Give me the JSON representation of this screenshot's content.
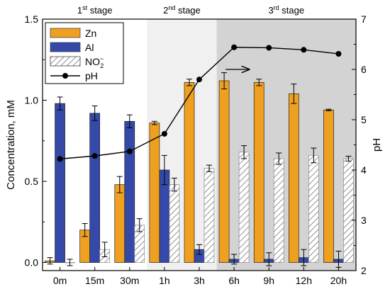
{
  "chart_data": {
    "type": "bar",
    "categories": [
      "0m",
      "15m",
      "30m",
      "1h",
      "3h",
      "6h",
      "9h",
      "12h",
      "20h"
    ],
    "stages": [
      {
        "label": "1st stage",
        "base": "1",
        "sup": "st",
        "rest": " stage"
      },
      {
        "label": "2nd stage",
        "base": "2",
        "sup": "nd",
        "rest": " stage"
      },
      {
        "label": "3rd stage",
        "base": "3",
        "sup": "rd",
        "rest": " stage"
      }
    ],
    "ylabel": "Concentration, mM",
    "y2label": "pH",
    "ylim": [
      -0.05,
      1.5
    ],
    "y2lim": [
      2.0,
      7.0
    ],
    "yticks": [
      "0.0",
      "0.5",
      "1.0",
      "1.5"
    ],
    "y2ticks": [
      "2",
      "3",
      "4",
      "5",
      "6",
      "7"
    ],
    "series": [
      {
        "name": "Zn",
        "kind": "bar",
        "color": "#f0a020",
        "values": [
          0.01,
          0.2,
          0.48,
          0.86,
          1.11,
          1.12,
          1.11,
          1.04,
          0.94
        ],
        "errors": [
          0.02,
          0.04,
          0.05,
          0.01,
          0.02,
          0.05,
          0.02,
          0.06,
          0.005
        ]
      },
      {
        "name": "Al",
        "kind": "bar",
        "color": "#3549a8",
        "values": [
          0.98,
          0.92,
          0.87,
          0.57,
          0.08,
          0.02,
          0.02,
          0.03,
          0.02
        ],
        "errors": [
          0.04,
          0.045,
          0.04,
          0.09,
          0.03,
          0.03,
          0.04,
          0.05,
          0.05
        ]
      },
      {
        "name": "NO2-",
        "label_main": "NO",
        "label_sub": "2",
        "label_sup": "−",
        "kind": "bar",
        "color": "#ffffff",
        "pattern": "hatch",
        "values": [
          0.0,
          0.08,
          0.23,
          0.48,
          0.58,
          0.68,
          0.64,
          0.66,
          0.64
        ],
        "errors": [
          0.02,
          0.045,
          0.04,
          0.04,
          0.02,
          0.04,
          0.035,
          0.045,
          0.015
        ]
      },
      {
        "name": "pH",
        "kind": "line",
        "axis": "right",
        "color": "#000000",
        "values": [
          4.22,
          4.28,
          4.37,
          4.72,
          5.8,
          6.44,
          6.43,
          6.39,
          6.31
        ]
      }
    ],
    "annotation": "arrow pointing right toward pH axis",
    "stage_backgrounds": [
      "#ffffff",
      "#f0f0f0",
      "#d3d3d3"
    ]
  }
}
